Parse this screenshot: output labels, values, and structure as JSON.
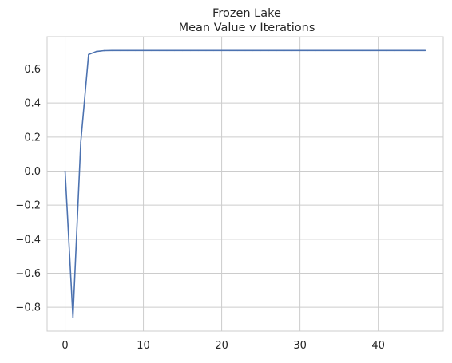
{
  "chart_data": {
    "type": "line",
    "title": "Frozen Lake",
    "subtitle": "Mean Value v Iterations",
    "xlabel": "",
    "ylabel": "",
    "xlim": [
      -2.3,
      48.3
    ],
    "ylim": [
      -0.94,
      0.79
    ],
    "xticks": [
      0,
      10,
      20,
      30,
      40
    ],
    "xtick_labels": [
      "0",
      "10",
      "20",
      "30",
      "40"
    ],
    "yticks": [
      -0.8,
      -0.6,
      -0.4,
      -0.2,
      0.0,
      0.2,
      0.4,
      0.6
    ],
    "ytick_labels": [
      "−0.8",
      "−0.6",
      "−0.4",
      "−0.2",
      "0.0",
      "0.2",
      "0.4",
      "0.6"
    ],
    "grid": true,
    "colors": {
      "line": "#4c72b0",
      "grid": "#cccccc",
      "spine": "#cccccc"
    },
    "series": [
      {
        "x": [
          0,
          1,
          2,
          3,
          4,
          5,
          6,
          7,
          8,
          9,
          10,
          11,
          12,
          13,
          14,
          15,
          16,
          17,
          18,
          19,
          20,
          21,
          22,
          23,
          24,
          25,
          26,
          27,
          28,
          29,
          30,
          31,
          32,
          33,
          34,
          35,
          36,
          37,
          38,
          39,
          40,
          41,
          42,
          43,
          44,
          45,
          46
        ],
        "values": [
          0.0,
          -0.86,
          0.17,
          0.685,
          0.703,
          0.708,
          0.709,
          0.709,
          0.709,
          0.709,
          0.709,
          0.709,
          0.709,
          0.709,
          0.709,
          0.709,
          0.709,
          0.709,
          0.709,
          0.709,
          0.709,
          0.709,
          0.709,
          0.709,
          0.709,
          0.709,
          0.709,
          0.709,
          0.709,
          0.709,
          0.709,
          0.709,
          0.709,
          0.709,
          0.709,
          0.709,
          0.709,
          0.709,
          0.709,
          0.709,
          0.709,
          0.709,
          0.709,
          0.709,
          0.709,
          0.709,
          0.709
        ]
      }
    ]
  }
}
